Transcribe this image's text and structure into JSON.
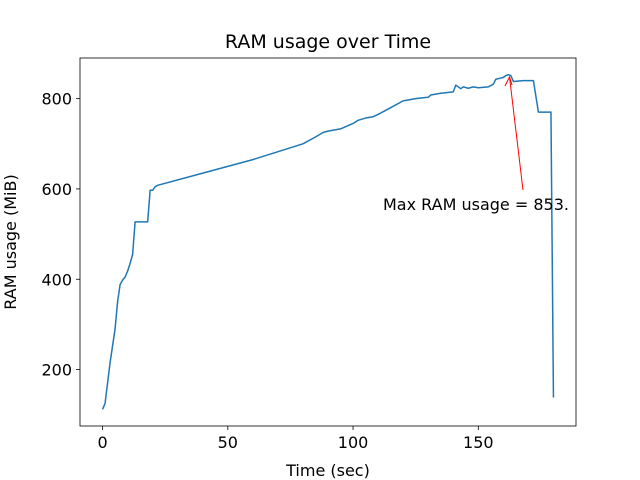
{
  "chart_data": {
    "type": "line",
    "title": "RAM usage over Time",
    "x_label": "Time (sec)",
    "y_label": "RAM usage (MiB)",
    "x": [
      0,
      1,
      3,
      5,
      6,
      7,
      8,
      9,
      10,
      11,
      12,
      13,
      14,
      15,
      18,
      19,
      20,
      21,
      22,
      40,
      60,
      80,
      85,
      88,
      90,
      95,
      100,
      102,
      105,
      108,
      110,
      115,
      120,
      125,
      128,
      130,
      131,
      135,
      140,
      141,
      143,
      144,
      146,
      148,
      150,
      154,
      156,
      157,
      160,
      161,
      162,
      163,
      164,
      168,
      172,
      174,
      179,
      180
    ],
    "series": [
      {
        "name": "RAM usage",
        "color": "#1f77b4",
        "values": [
          112,
          125,
          215,
          290,
          350,
          388,
          398,
          405,
          418,
          435,
          455,
          527,
          527,
          527,
          527,
          597,
          597,
          605,
          608,
          635,
          665,
          700,
          715,
          725,
          728,
          733,
          745,
          752,
          757,
          760,
          765,
          780,
          795,
          800,
          802,
          803,
          808,
          812,
          815,
          830,
          822,
          826,
          823,
          826,
          824,
          826,
          832,
          843,
          847,
          851,
          853,
          851,
          838,
          840,
          840,
          770,
          770,
          138
        ]
      }
    ],
    "annotation": "Max RAM usage = 853.",
    "annotation_color": "#ff0000",
    "xlim": [
      -9,
      189
    ],
    "ylim": [
      75,
      890
    ],
    "xticks": [
      0,
      50,
      100,
      150
    ],
    "yticks": [
      200,
      400,
      600,
      800
    ]
  }
}
